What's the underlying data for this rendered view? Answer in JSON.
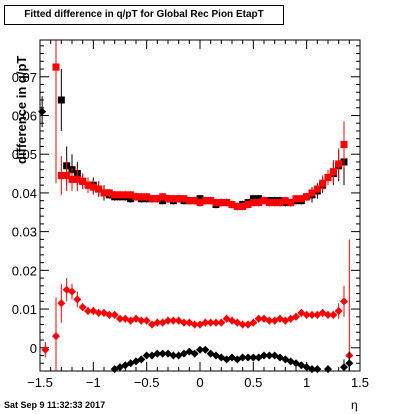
{
  "title": "Fitted difference in q/pT for Global Rec Pion EtapT",
  "timestamp": "Sat Sep  9 11:32:33 2017",
  "chart_data": {
    "type": "scatter",
    "title": "Fitted difference in q/pT for Global Rec Pion EtapT",
    "xlabel": "η",
    "ylabel": "difference in q/pT",
    "xlim": [
      -1.5,
      1.5
    ],
    "ylim": [
      -0.006,
      0.0795
    ],
    "x_ticks": [
      -1.5,
      -1,
      -0.5,
      0,
      0.5,
      1,
      1.5
    ],
    "x_tick_labels": [
      "−1.5",
      "−1",
      "−0.5",
      "0",
      "0.5",
      "1",
      "1.5"
    ],
    "y_ticks": [
      0,
      0.01,
      0.02,
      0.03,
      0.04,
      0.05,
      0.06,
      0.07
    ],
    "y_tick_labels": [
      "0",
      "0.01",
      "0.02",
      "0.03",
      "0.04",
      "0.05",
      "0.06",
      "0.07"
    ],
    "grid": false,
    "series": [
      {
        "color": "#000000",
        "marker": "square",
        "x": [
          -1.35,
          -1.3,
          -1.25,
          -1.2,
          -1.15,
          -1.1,
          -1.05,
          -1.0,
          -0.95,
          -0.9,
          -0.85,
          -0.8,
          -0.75,
          -0.7,
          -0.65,
          -0.6,
          -0.55,
          -0.5,
          -0.45,
          -0.4,
          -0.35,
          -0.3,
          -0.25,
          -0.2,
          -0.15,
          -0.1,
          -0.05,
          0.0,
          0.05,
          0.1,
          0.15,
          0.2,
          0.25,
          0.3,
          0.35,
          0.4,
          0.45,
          0.5,
          0.55,
          0.6,
          0.65,
          0.7,
          0.75,
          0.8,
          0.85,
          0.9,
          0.95,
          1.0,
          1.05,
          1.1,
          1.15,
          1.2,
          1.25,
          1.3,
          1.35
        ],
        "y": [
          0.0725,
          0.064,
          0.047,
          0.046,
          0.045,
          0.043,
          0.042,
          0.042,
          0.041,
          0.04,
          0.0395,
          0.039,
          0.039,
          0.039,
          0.0385,
          0.039,
          0.0385,
          0.0385,
          0.0385,
          0.0385,
          0.038,
          0.0385,
          0.038,
          0.0385,
          0.038,
          0.038,
          0.038,
          0.0385,
          0.038,
          0.038,
          0.037,
          0.0375,
          0.0375,
          0.037,
          0.0365,
          0.037,
          0.0375,
          0.0385,
          0.0385,
          0.038,
          0.038,
          0.038,
          0.038,
          0.0375,
          0.0375,
          0.038,
          0.038,
          0.039,
          0.0395,
          0.0405,
          0.042,
          0.044,
          0.045,
          0.047,
          0.048
        ],
        "err": [
          0.009,
          0.008,
          0.005,
          0.004,
          0.003,
          0.002,
          0.002,
          0.002,
          0.002,
          0.002,
          0.001,
          0.001,
          0.001,
          0.001,
          0.001,
          0.001,
          0.001,
          0.001,
          0.001,
          0.001,
          0.001,
          0.001,
          0.001,
          0.001,
          0.001,
          0.001,
          0.001,
          0.001,
          0.001,
          0.001,
          0.001,
          0.001,
          0.001,
          0.001,
          0.001,
          0.001,
          0.001,
          0.001,
          0.001,
          0.001,
          0.001,
          0.001,
          0.001,
          0.001,
          0.001,
          0.001,
          0.001,
          0.001,
          0.002,
          0.002,
          0.002,
          0.002,
          0.003,
          0.004,
          0.006
        ]
      },
      {
        "color": "#ff0000",
        "marker": "square",
        "x": [
          -1.35,
          -1.3,
          -1.25,
          -1.2,
          -1.15,
          -1.1,
          -1.05,
          -1.0,
          -0.95,
          -0.9,
          -0.85,
          -0.8,
          -0.75,
          -0.7,
          -0.65,
          -0.6,
          -0.55,
          -0.5,
          -0.45,
          -0.4,
          -0.35,
          -0.3,
          -0.25,
          -0.2,
          -0.15,
          -0.1,
          -0.05,
          0.0,
          0.05,
          0.1,
          0.15,
          0.2,
          0.25,
          0.3,
          0.35,
          0.4,
          0.45,
          0.5,
          0.55,
          0.6,
          0.65,
          0.7,
          0.75,
          0.8,
          0.85,
          0.9,
          0.95,
          1.0,
          1.05,
          1.1,
          1.15,
          1.2,
          1.25,
          1.3,
          1.35
        ],
        "y": [
          0.0725,
          0.0445,
          0.0445,
          0.0435,
          0.0435,
          0.043,
          0.042,
          0.0415,
          0.041,
          0.04,
          0.04,
          0.0395,
          0.0395,
          0.0395,
          0.0395,
          0.039,
          0.039,
          0.039,
          0.0385,
          0.0385,
          0.039,
          0.0385,
          0.0385,
          0.0385,
          0.0385,
          0.038,
          0.038,
          0.0375,
          0.038,
          0.038,
          0.0375,
          0.0375,
          0.0375,
          0.037,
          0.0365,
          0.0365,
          0.037,
          0.0375,
          0.0375,
          0.038,
          0.0375,
          0.0375,
          0.0375,
          0.038,
          0.0375,
          0.0385,
          0.0385,
          0.039,
          0.04,
          0.041,
          0.0425,
          0.044,
          0.0455,
          0.0475,
          0.0525
        ],
        "err": [
          0.03,
          0.005,
          0.004,
          0.003,
          0.003,
          0.002,
          0.002,
          0.002,
          0.002,
          0.001,
          0.001,
          0.001,
          0.001,
          0.001,
          0.001,
          0.001,
          0.001,
          0.001,
          0.001,
          0.001,
          0.001,
          0.001,
          0.001,
          0.001,
          0.001,
          0.001,
          0.001,
          0.001,
          0.001,
          0.001,
          0.001,
          0.001,
          0.001,
          0.001,
          0.001,
          0.001,
          0.001,
          0.001,
          0.001,
          0.001,
          0.001,
          0.001,
          0.001,
          0.001,
          0.001,
          0.001,
          0.001,
          0.001,
          0.001,
          0.001,
          0.002,
          0.002,
          0.003,
          0.004,
          0.006
        ]
      },
      {
        "color": "#ff0000",
        "marker": "diamond",
        "x": [
          -1.45,
          -1.35,
          -1.3,
          -1.25,
          -1.2,
          -1.15,
          -1.1,
          -1.05,
          -1.0,
          -0.95,
          -0.9,
          -0.85,
          -0.8,
          -0.75,
          -0.7,
          -0.65,
          -0.6,
          -0.55,
          -0.5,
          -0.45,
          -0.4,
          -0.35,
          -0.3,
          -0.25,
          -0.2,
          -0.15,
          -0.1,
          -0.05,
          0.0,
          0.05,
          0.1,
          0.15,
          0.2,
          0.25,
          0.3,
          0.35,
          0.4,
          0.45,
          0.5,
          0.55,
          0.6,
          0.65,
          0.7,
          0.75,
          0.8,
          0.85,
          0.9,
          0.95,
          1.0,
          1.05,
          1.1,
          1.15,
          1.2,
          1.25,
          1.3,
          1.35,
          1.4
        ],
        "y": [
          -0.0005,
          0.003,
          0.0115,
          0.015,
          0.0145,
          0.0125,
          0.0105,
          0.0095,
          0.0095,
          0.009,
          0.009,
          0.0085,
          0.0085,
          0.0075,
          0.0075,
          0.007,
          0.0075,
          0.007,
          0.007,
          0.006,
          0.0065,
          0.0065,
          0.007,
          0.007,
          0.007,
          0.0065,
          0.0065,
          0.006,
          0.006,
          0.0065,
          0.0065,
          0.0065,
          0.0065,
          0.0075,
          0.007,
          0.0065,
          0.006,
          0.006,
          0.0065,
          0.0075,
          0.0075,
          0.007,
          0.007,
          0.0075,
          0.007,
          0.0075,
          0.008,
          0.009,
          0.0085,
          0.0085,
          0.0085,
          0.009,
          0.0085,
          0.0085,
          0.0095,
          0.012,
          -0.002
        ],
        "err": [
          0.002,
          0.01,
          0.005,
          0.003,
          0.002,
          0.002,
          0.001,
          0.001,
          0.001,
          0.001,
          0.001,
          0.001,
          0.001,
          0.001,
          0.001,
          0.001,
          0.001,
          0.001,
          0.001,
          0.001,
          0.001,
          0.001,
          0.001,
          0.001,
          0.001,
          0.001,
          0.001,
          0.001,
          0.001,
          0.001,
          0.001,
          0.001,
          0.001,
          0.001,
          0.001,
          0.001,
          0.001,
          0.001,
          0.001,
          0.001,
          0.001,
          0.001,
          0.001,
          0.001,
          0.001,
          0.001,
          0.001,
          0.001,
          0.001,
          0.001,
          0.001,
          0.001,
          0.001,
          0.001,
          0.002,
          0.004,
          0.03
        ]
      },
      {
        "color": "#000000",
        "marker": "diamond",
        "x": [
          -1.48,
          -0.8,
          -0.75,
          -0.7,
          -0.65,
          -0.6,
          -0.55,
          -0.5,
          -0.45,
          -0.4,
          -0.35,
          -0.3,
          -0.25,
          -0.2,
          -0.15,
          -0.1,
          -0.05,
          0.0,
          0.05,
          0.1,
          0.15,
          0.2,
          0.25,
          0.3,
          0.35,
          0.4,
          0.45,
          0.5,
          0.55,
          0.6,
          0.65,
          0.7,
          0.75,
          0.8,
          0.85,
          0.9,
          0.95,
          1.0,
          1.05,
          1.1,
          1.2,
          1.35,
          1.4
        ],
        "y": [
          0.061,
          -0.0055,
          -0.005,
          -0.0045,
          -0.004,
          -0.0035,
          -0.003,
          -0.002,
          -0.002,
          -0.0015,
          -0.0015,
          -0.0015,
          -0.002,
          -0.002,
          -0.0015,
          -0.001,
          -0.0015,
          -0.0005,
          -0.0005,
          -0.0015,
          -0.002,
          -0.0025,
          -0.003,
          -0.0025,
          -0.003,
          -0.0025,
          -0.0025,
          -0.0025,
          -0.0025,
          -0.002,
          -0.002,
          -0.002,
          -0.0025,
          -0.003,
          -0.0035,
          -0.004,
          -0.0045,
          -0.005,
          -0.0055,
          -0.0055,
          -0.0055,
          -0.005,
          -0.004
        ],
        "err": [
          0.004,
          0.0005,
          0.0005,
          0.0005,
          0.0005,
          0.0005,
          0.0005,
          0.0005,
          0.0005,
          0.0005,
          0.0005,
          0.0005,
          0.0005,
          0.0005,
          0.0005,
          0.0005,
          0.0005,
          0.0005,
          0.0005,
          0.0005,
          0.0005,
          0.0005,
          0.0005,
          0.0005,
          0.0005,
          0.0005,
          0.0005,
          0.0005,
          0.0005,
          0.0005,
          0.0005,
          0.0005,
          0.0005,
          0.0005,
          0.0005,
          0.0005,
          0.0005,
          0.0005,
          0.0005,
          0.0005,
          0.0005,
          0.002,
          0.003
        ]
      }
    ]
  }
}
